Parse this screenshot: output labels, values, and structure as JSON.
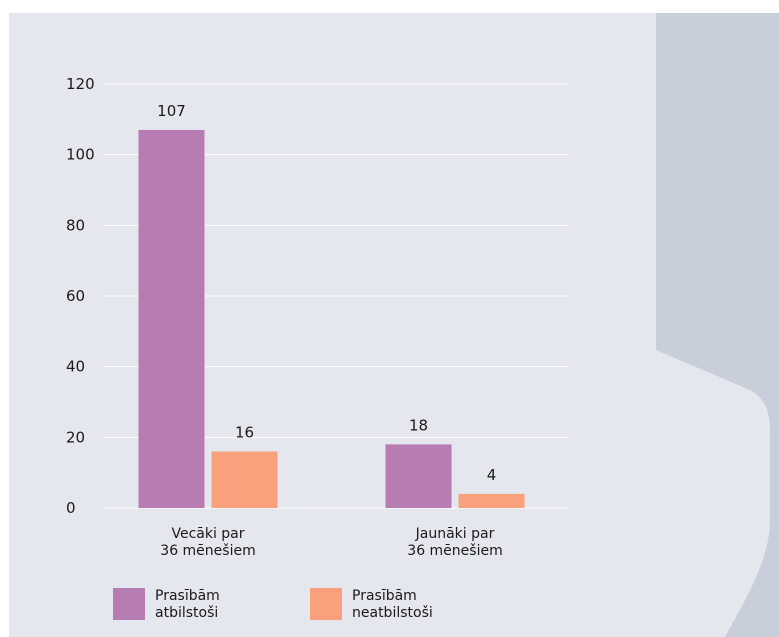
{
  "colors": {
    "panel": "#e5e7ee",
    "sidebar": "#c8ceda",
    "series_1": "#b77cb2",
    "series_2": "#f9a07c",
    "grid": "#ffffff"
  },
  "chart_data": {
    "type": "bar",
    "categories": [
      "Vecāki par\n36 mēnešiem",
      "Jaunāki par\n36 mēnešiem"
    ],
    "series": [
      {
        "name": "Prasībām atbilstoši",
        "values": [
          107,
          18
        ]
      },
      {
        "name": "Prasībām neatbilstoši",
        "values": [
          16,
          4
        ]
      }
    ],
    "yticks": [
      0,
      20,
      40,
      60,
      80,
      100,
      120
    ],
    "ylim": [
      0,
      120
    ],
    "grid": true,
    "legend_position": "bottom-left",
    "title": "",
    "xlabel": "",
    "ylabel": ""
  },
  "legend": {
    "item_1_label": "Prasībām\natbilstoši",
    "item_2_label": "Prasībām\nneatbilstoši"
  }
}
